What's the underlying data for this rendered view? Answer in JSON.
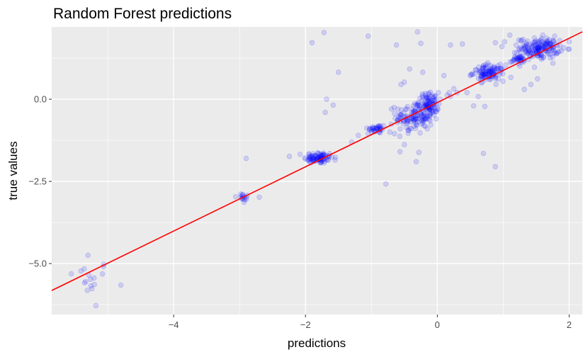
{
  "chart_data": {
    "type": "scatter",
    "title": "Random Forest predictions",
    "xlabel": "predictions",
    "ylabel": "true values",
    "xlim": [
      -5.85,
      2.2
    ],
    "ylim": [
      -6.55,
      2.2
    ],
    "x_ticks": [
      -4,
      -2,
      0,
      2
    ],
    "x_tick_labels": [
      "−4",
      "−2",
      "0",
      "2"
    ],
    "y_ticks": [
      -5.0,
      -2.5,
      0.0
    ],
    "y_tick_labels": [
      "−5.0",
      "−2.5",
      "0.0"
    ],
    "grid": true,
    "legend": "none",
    "colors": {
      "panel_background": "#ebebeb",
      "grid_major": "#ffffff",
      "points": "#0000ff",
      "fit_line": "#ff0000"
    },
    "fit_line": {
      "from": [
        -5.85,
        -5.82
      ],
      "to": [
        2.2,
        2.05
      ]
    },
    "clusters": [
      {
        "cx": -5.3,
        "cy": -5.45,
        "sx": 0.18,
        "sy": 0.28,
        "n": 16
      },
      {
        "cx": -2.95,
        "cy": -3.0,
        "sx": 0.06,
        "sy": 0.08,
        "n": 16
      },
      {
        "cx": -1.8,
        "cy": -1.78,
        "sx": 0.11,
        "sy": 0.09,
        "n": 90
      },
      {
        "cx": -0.92,
        "cy": -0.9,
        "sx": 0.07,
        "sy": 0.07,
        "n": 35
      },
      {
        "cx": -0.35,
        "cy": -0.55,
        "sx": 0.14,
        "sy": 0.25,
        "n": 130
      },
      {
        "cx": -0.12,
        "cy": -0.15,
        "sx": 0.07,
        "sy": 0.18,
        "n": 90
      },
      {
        "cx": 0.78,
        "cy": 0.8,
        "sx": 0.12,
        "sy": 0.12,
        "n": 110
      },
      {
        "cx": 1.25,
        "cy": 1.2,
        "sx": 0.07,
        "sy": 0.07,
        "n": 35
      },
      {
        "cx": 1.55,
        "cy": 1.55,
        "sx": 0.15,
        "sy": 0.15,
        "n": 170
      }
    ],
    "outliers": [
      [
        -5.3,
        -4.75
      ],
      [
        -5.18,
        -6.28
      ],
      [
        -2.9,
        -1.8
      ],
      [
        -2.7,
        -2.98
      ],
      [
        -1.9,
        1.72
      ],
      [
        -1.72,
        2.03
      ],
      [
        -1.5,
        0.82
      ],
      [
        -1.7,
        -0.4
      ],
      [
        -1.68,
        0.0
      ],
      [
        -1.58,
        -0.18
      ],
      [
        -1.55,
        -1.85
      ],
      [
        -1.05,
        1.92
      ],
      [
        -0.78,
        -2.58
      ],
      [
        -0.62,
        1.65
      ],
      [
        -0.5,
        0.52
      ],
      [
        -0.42,
        0.92
      ],
      [
        -0.3,
        2.05
      ],
      [
        -0.25,
        1.7
      ],
      [
        -0.22,
        0.82
      ],
      [
        -0.5,
        -1.38
      ],
      [
        -0.32,
        -1.9
      ],
      [
        -0.28,
        -1.62
      ],
      [
        0.1,
        0.72
      ],
      [
        0.2,
        1.65
      ],
      [
        0.38,
        1.68
      ],
      [
        0.25,
        0.32
      ],
      [
        0.45,
        0.2
      ],
      [
        0.55,
        -0.2
      ],
      [
        0.62,
        0.08
      ],
      [
        0.72,
        -0.22
      ],
      [
        0.8,
        0.6
      ],
      [
        0.98,
        1.6
      ],
      [
        1.02,
        1.75
      ],
      [
        0.7,
        -1.65
      ],
      [
        0.88,
        -2.05
      ],
      [
        0.88,
        1.72
      ],
      [
        1.1,
        1.95
      ],
      [
        1.42,
        0.45
      ],
      [
        1.32,
        0.3
      ],
      [
        1.52,
        0.62
      ],
      [
        0.15,
        0.12
      ],
      [
        0.18,
        0.2
      ],
      [
        0.2,
        0.08
      ],
      [
        0.3,
        0.2
      ],
      [
        -1.3,
        -1.3
      ],
      [
        -1.2,
        -1.1
      ],
      [
        -1.05,
        -1.05
      ],
      [
        -0.72,
        -1.0
      ],
      [
        -0.65,
        -1.05
      ],
      [
        -0.55,
        0.45
      ],
      [
        1.78,
        1.92
      ],
      [
        1.6,
        1.95
      ]
    ]
  }
}
